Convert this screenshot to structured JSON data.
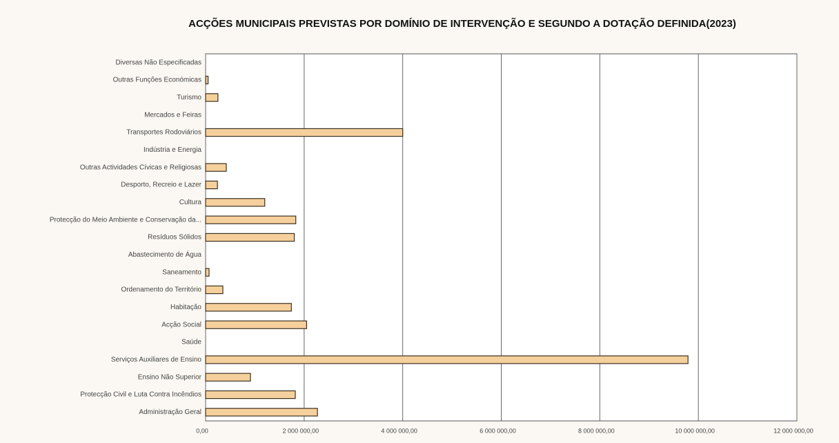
{
  "chart_data": {
    "type": "barh",
    "title": "ACÇÕES MUNICIPAIS PREVISTAS POR DOMÍNIO DE INTERVENÇÃO E SEGUNDO A DOTAÇÃO DEFINIDA(2023)",
    "categories": [
      "Diversas Não Especificadas",
      "Outras Funções Económicas",
      "Turismo",
      "Mercados e Feiras",
      "Transportes Rodoviários",
      "Indústria e Energia",
      "Outras Actividades Cívicas e Religiosas",
      "Desporto, Recreio e Lazer",
      "Cultura",
      "Protecção do Meio Ambiente e Conservação da...",
      "Resíduos Sólidos",
      "Abastecimento de Água",
      "Saneamento",
      "Ordenamento do Território",
      "Habitação",
      "Acção Social",
      "Saúde",
      "Serviços Auxiliares de Ensino",
      "Ensino Não Superior",
      "Protecção Civil e Luta Contra Incêndios",
      "Administração Geral"
    ],
    "values": [
      0,
      50000,
      250000,
      0,
      4000000,
      0,
      420000,
      240000,
      1200000,
      1830000,
      1800000,
      0,
      70000,
      350000,
      1740000,
      2050000,
      0,
      9790000,
      910000,
      1820000,
      2270000
    ],
    "color": "#f6d09c",
    "xlim": [
      0,
      12000000
    ],
    "xticks": [
      {
        "value": 0,
        "label": "0,00"
      },
      {
        "value": 2000000,
        "label": "2 000 000,00"
      },
      {
        "value": 4000000,
        "label": "4 000 000,00"
      },
      {
        "value": 6000000,
        "label": "6 000 000,00"
      },
      {
        "value": 8000000,
        "label": "8 000 000,00"
      },
      {
        "value": 10000000,
        "label": "10 000 000,00"
      },
      {
        "value": 12000000,
        "label": "12 000 000,00"
      }
    ],
    "grid": true
  }
}
